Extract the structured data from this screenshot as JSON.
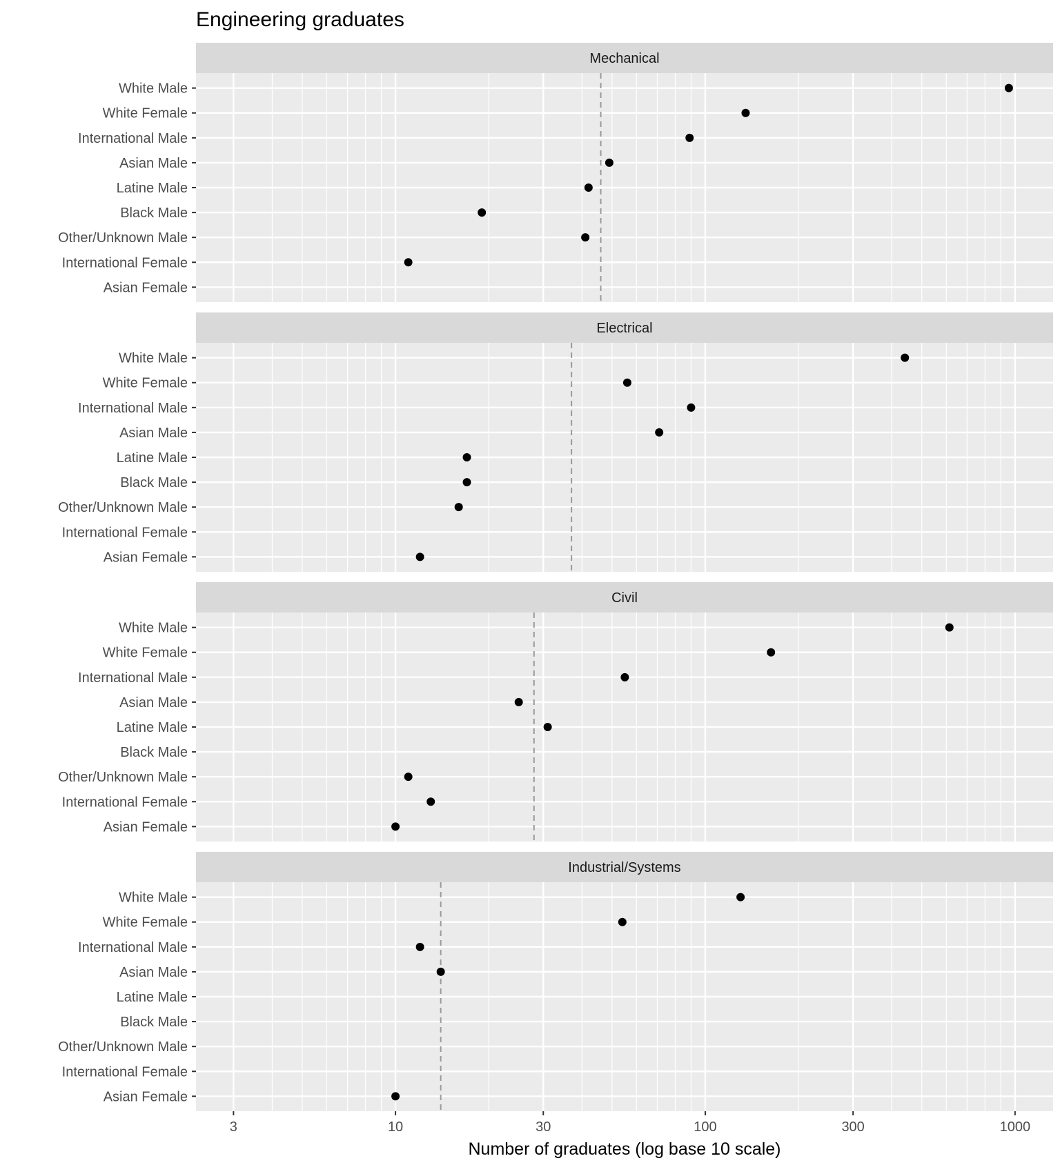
{
  "chart_data": {
    "type": "scatter",
    "title": "Engineering graduates",
    "xlabel": "Number of graduates (log base 10 scale)",
    "ylabel": "",
    "xscale": "log10",
    "xlim": [
      2.27,
      1327
    ],
    "xticks": [
      3,
      10,
      30,
      100,
      300,
      1000
    ],
    "xtick_labels": [
      "3",
      "10",
      "30",
      "100",
      "300",
      "1000"
    ],
    "grid": true,
    "categories": [
      "White Male",
      "White Female",
      "International Male",
      "Asian Male",
      "Latine Male",
      "Black Male",
      "Other/Unknown Male",
      "International Female",
      "Asian Female"
    ],
    "panels": [
      {
        "name": "Mechanical",
        "mean_line": 46,
        "values": [
          955,
          135,
          89,
          49,
          42,
          19,
          41,
          11,
          null
        ]
      },
      {
        "name": "Electrical",
        "mean_line": 37,
        "values": [
          441,
          56,
          90,
          71,
          17,
          17,
          16,
          null,
          12
        ]
      },
      {
        "name": "Civil",
        "mean_line": 28,
        "values": [
          614,
          163,
          55,
          25,
          31,
          null,
          11,
          13,
          10
        ]
      },
      {
        "name": "Industrial/Systems",
        "mean_line": 14,
        "values": [
          130,
          54,
          12,
          14,
          null,
          null,
          null,
          null,
          10
        ]
      }
    ],
    "colors": {
      "panel_bg": "#ebebeb",
      "strip_bg": "#d9d9d9",
      "point": "#000000",
      "mean_line": "#999999"
    }
  }
}
